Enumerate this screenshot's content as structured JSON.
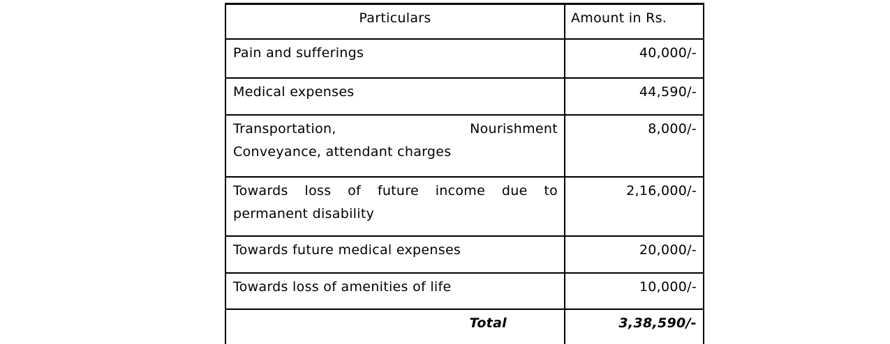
{
  "page": {
    "background_color": "#ffffff",
    "text_color": "#000000",
    "border_color": "#000000"
  },
  "table": {
    "header": {
      "particulars": "Particulars",
      "amount": "Amount in Rs."
    },
    "rows": [
      {
        "lines": [
          "Pain and sufferings"
        ],
        "amount": "40,000/-"
      },
      {
        "lines": [
          "Medical expenses"
        ],
        "amount": "44,590/-"
      },
      {
        "lines": [
          "Transportation, Nourishment",
          "Conveyance, attendant charges"
        ],
        "amount": "8,000/-"
      },
      {
        "lines": [
          "Towards loss of future income due to",
          "permanent disability"
        ],
        "amount": "2,16,000/-"
      },
      {
        "lines": [
          "Towards future medical expenses"
        ],
        "amount": "20,000/-"
      },
      {
        "lines": [
          "Towards loss of amenities of life"
        ],
        "amount": "10,000/-"
      }
    ],
    "total": {
      "label": "Total",
      "amount": "3,38,590/-"
    }
  }
}
